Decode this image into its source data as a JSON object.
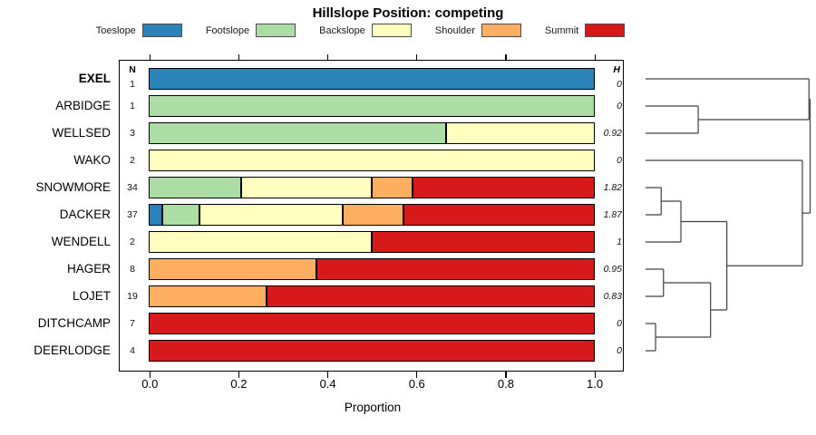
{
  "title": "Hillslope Position: competing",
  "axis": {
    "label": "Proportion",
    "ticks": [
      "0.0",
      "0.2",
      "0.4",
      "0.6",
      "0.8",
      "1.0"
    ],
    "tick_values": [
      0,
      0.2,
      0.4,
      0.6,
      0.8,
      1.0
    ]
  },
  "columns": {
    "n_header": "N",
    "h_header": "H"
  },
  "legend": [
    {
      "label": "Toeslope",
      "color": "#2B83BA"
    },
    {
      "label": "Footslope",
      "color": "#ABDDA4"
    },
    {
      "label": "Backslope",
      "color": "#FFFFBF"
    },
    {
      "label": "Shoulder",
      "color": "#FDAE61"
    },
    {
      "label": "Summit",
      "color": "#D7191C"
    }
  ],
  "chart_data": {
    "type": "bar",
    "orientation": "horizontal-stacked",
    "title": "Hillslope Position: competing",
    "xlabel": "Proportion",
    "xlim": [
      0,
      1
    ],
    "grid": false,
    "categories": [
      "Toeslope",
      "Footslope",
      "Backslope",
      "Shoulder",
      "Summit"
    ],
    "colors": {
      "Toeslope": "#2B83BA",
      "Footslope": "#ABDDA4",
      "Backslope": "#FFFFBF",
      "Shoulder": "#FDAE61",
      "Summit": "#D7191C"
    },
    "rows": [
      {
        "name": "EXEL",
        "bold": true,
        "n": "1",
        "h": "0",
        "segments": [
          [
            "Toeslope",
            1.0
          ]
        ]
      },
      {
        "name": "ARBIDGE",
        "bold": false,
        "n": "1",
        "h": "0",
        "segments": [
          [
            "Footslope",
            1.0
          ]
        ]
      },
      {
        "name": "WELLSED",
        "bold": false,
        "n": "3",
        "h": "0.92",
        "segments": [
          [
            "Footslope",
            0.667
          ],
          [
            "Backslope",
            0.333
          ]
        ]
      },
      {
        "name": "WAKO",
        "bold": false,
        "n": "2",
        "h": "0",
        "segments": [
          [
            "Backslope",
            1.0
          ]
        ]
      },
      {
        "name": "SNOWMORE",
        "bold": false,
        "n": "34",
        "h": "1.82",
        "segments": [
          [
            "Footslope",
            0.206
          ],
          [
            "Backslope",
            0.294
          ],
          [
            "Shoulder",
            0.088
          ],
          [
            "Summit",
            0.412
          ]
        ]
      },
      {
        "name": "DACKER",
        "bold": false,
        "n": "37",
        "h": "1.87",
        "segments": [
          [
            "Toeslope",
            0.027
          ],
          [
            "Footslope",
            0.081
          ],
          [
            "Backslope",
            0.324
          ],
          [
            "Shoulder",
            0.135
          ],
          [
            "Summit",
            0.433
          ]
        ]
      },
      {
        "name": "WENDELL",
        "bold": false,
        "n": "2",
        "h": "1",
        "segments": [
          [
            "Backslope",
            0.5
          ],
          [
            "Summit",
            0.5
          ]
        ]
      },
      {
        "name": "HAGER",
        "bold": false,
        "n": "8",
        "h": "0.95",
        "segments": [
          [
            "Shoulder",
            0.375
          ],
          [
            "Summit",
            0.625
          ]
        ]
      },
      {
        "name": "LOJET",
        "bold": false,
        "n": "19",
        "h": "0.83",
        "segments": [
          [
            "Shoulder",
            0.263
          ],
          [
            "Summit",
            0.737
          ]
        ]
      },
      {
        "name": "DITCHCAMP",
        "bold": false,
        "n": "7",
        "h": "0",
        "segments": [
          [
            "Summit",
            1.0
          ]
        ]
      },
      {
        "name": "DEERLODGE",
        "bold": false,
        "n": "4",
        "h": "0",
        "segments": [
          [
            "Summit",
            1.0
          ]
        ]
      }
    ],
    "dendrogram": {
      "leaf_order": [
        "EXEL",
        "ARBIDGE",
        "WELLSED",
        "WAKO",
        "SNOWMORE",
        "DACKER",
        "WENDELL",
        "HAGER",
        "LOJET",
        "DITCHCAMP",
        "DEERLODGE"
      ],
      "merges": [
        {
          "a": "DITCHCAMP",
          "b": "DEERLODGE",
          "h": 0.061
        },
        {
          "a": "SNOWMORE",
          "b": "DACKER",
          "h": 0.095
        },
        {
          "a": "HAGER",
          "b": "LOJET",
          "h": 0.109
        },
        {
          "a": "ARBIDGE",
          "b": "WELLSED",
          "h": 0.32
        },
        {
          "a": "#1",
          "b": "WENDELL",
          "h": 0.215
        },
        {
          "a": "#2",
          "b": "#0",
          "h": 0.395
        },
        {
          "a": "#4",
          "b": "#5",
          "h": 0.494
        },
        {
          "a": "WAKO",
          "b": "#6",
          "h": 0.953
        },
        {
          "a": "EXEL",
          "b": "#3",
          "h": 0.993
        },
        {
          "a": "#8",
          "b": "#7",
          "h": 1.0
        }
      ]
    }
  }
}
